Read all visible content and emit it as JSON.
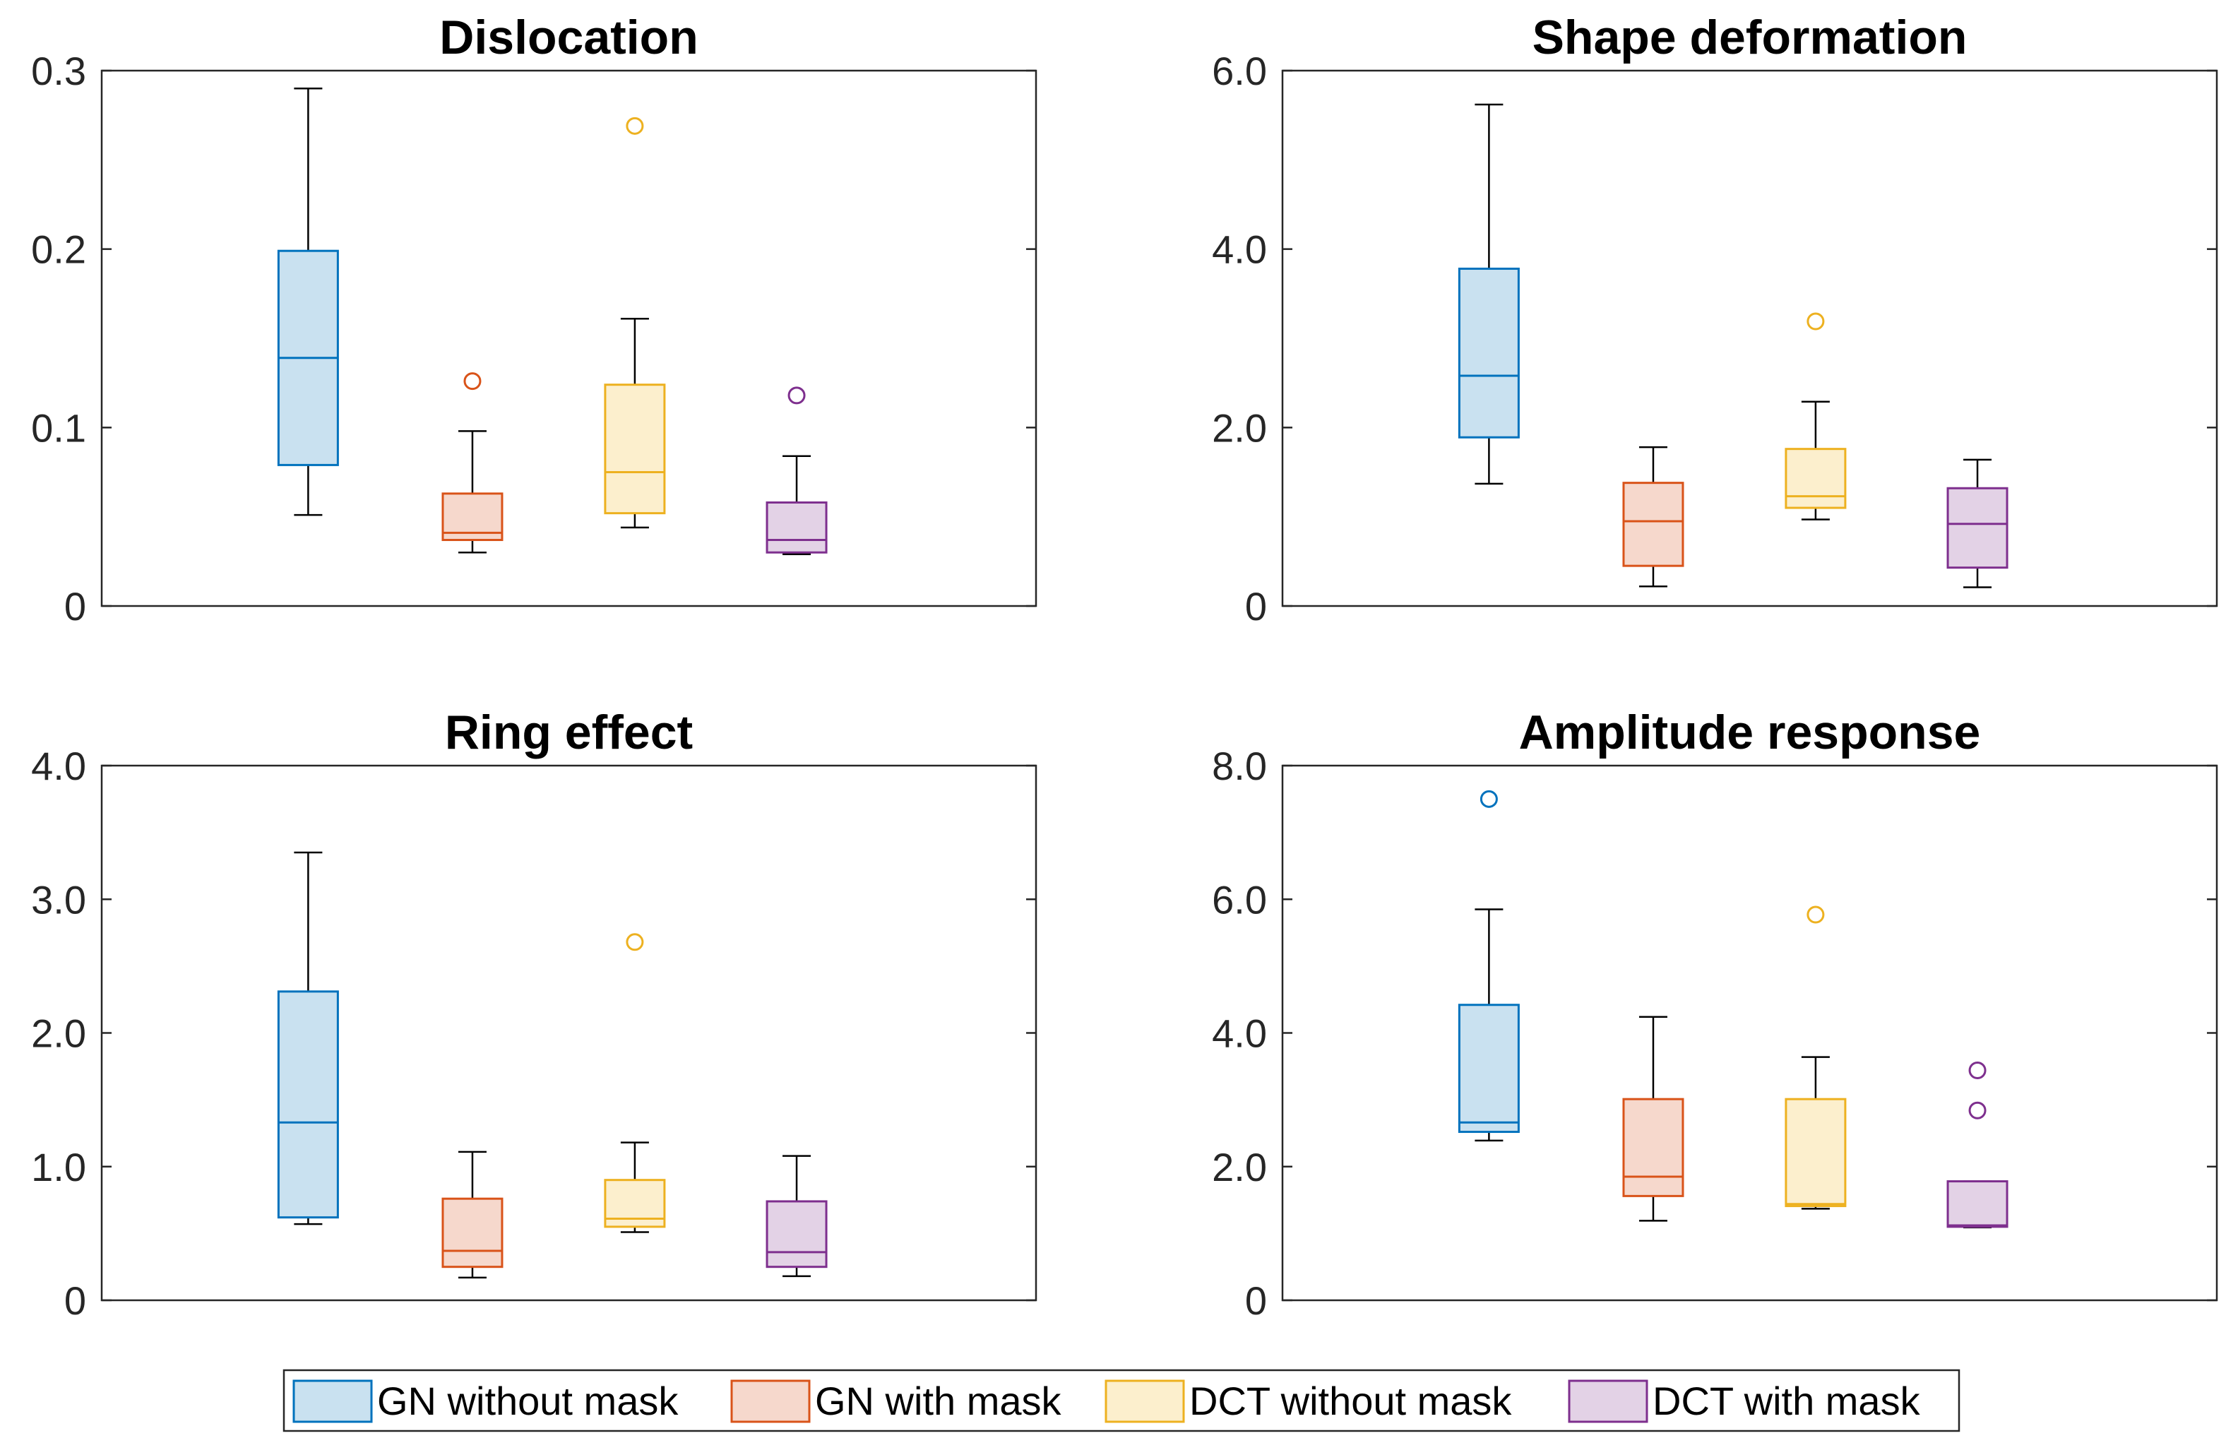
{
  "chart_data": [
    {
      "type": "box",
      "title": "Dislocation",
      "ylim": [
        0,
        0.3
      ],
      "yticks": [
        {
          "value": 0,
          "label": "0"
        },
        {
          "value": 0.1,
          "label": "0.1"
        },
        {
          "value": 0.2,
          "label": "0.2"
        },
        {
          "value": 0.3,
          "label": "0.3"
        }
      ],
      "series": [
        {
          "name": "GN without mask",
          "whisker_low": 0.051,
          "q1": 0.079,
          "median": 0.139,
          "q3": 0.199,
          "whisker_high": 0.29,
          "outliers": []
        },
        {
          "name": "GN with mask",
          "whisker_low": 0.03,
          "q1": 0.037,
          "median": 0.041,
          "q3": 0.063,
          "whisker_high": 0.098,
          "outliers": [
            0.126
          ]
        },
        {
          "name": "DCT without mask",
          "whisker_low": 0.044,
          "q1": 0.052,
          "median": 0.075,
          "q3": 0.124,
          "whisker_high": 0.161,
          "outliers": [
            0.269
          ]
        },
        {
          "name": "DCT with mask",
          "whisker_low": 0.029,
          "q1": 0.03,
          "median": 0.037,
          "q3": 0.058,
          "whisker_high": 0.084,
          "outliers": [
            0.118
          ]
        }
      ]
    },
    {
      "type": "box",
      "title": "Shape deformation",
      "ylim": [
        0,
        6
      ],
      "yticks": [
        {
          "value": 0,
          "label": "0"
        },
        {
          "value": 2,
          "label": "2.0"
        },
        {
          "value": 4,
          "label": "4.0"
        },
        {
          "value": 6,
          "label": "6.0"
        }
      ],
      "series": [
        {
          "name": "GN without mask",
          "whisker_low": 1.37,
          "q1": 1.89,
          "median": 2.58,
          "q3": 3.78,
          "whisker_high": 5.62,
          "outliers": []
        },
        {
          "name": "GN with mask",
          "whisker_low": 0.22,
          "q1": 0.45,
          "median": 0.95,
          "q3": 1.38,
          "whisker_high": 1.78,
          "outliers": []
        },
        {
          "name": "DCT without mask",
          "whisker_low": 0.97,
          "q1": 1.1,
          "median": 1.23,
          "q3": 1.76,
          "whisker_high": 2.29,
          "outliers": [
            3.19
          ]
        },
        {
          "name": "DCT with mask",
          "whisker_low": 0.21,
          "q1": 0.43,
          "median": 0.92,
          "q3": 1.32,
          "whisker_high": 1.64,
          "outliers": []
        }
      ]
    },
    {
      "type": "box",
      "title": "Ring effect",
      "ylim": [
        0,
        4
      ],
      "yticks": [
        {
          "value": 0,
          "label": "0"
        },
        {
          "value": 1,
          "label": "1.0"
        },
        {
          "value": 2,
          "label": "2.0"
        },
        {
          "value": 3,
          "label": "3.0"
        },
        {
          "value": 4,
          "label": "4.0"
        }
      ],
      "series": [
        {
          "name": "GN without mask",
          "whisker_low": 0.57,
          "q1": 0.62,
          "median": 1.33,
          "q3": 2.31,
          "whisker_high": 3.35,
          "outliers": []
        },
        {
          "name": "GN with mask",
          "whisker_low": 0.17,
          "q1": 0.25,
          "median": 0.37,
          "q3": 0.76,
          "whisker_high": 1.11,
          "outliers": []
        },
        {
          "name": "DCT without mask",
          "whisker_low": 0.51,
          "q1": 0.55,
          "median": 0.61,
          "q3": 0.9,
          "whisker_high": 1.18,
          "outliers": [
            2.68
          ]
        },
        {
          "name": "DCT with mask",
          "whisker_low": 0.18,
          "q1": 0.25,
          "median": 0.36,
          "q3": 0.74,
          "whisker_high": 1.08,
          "outliers": []
        }
      ]
    },
    {
      "type": "box",
      "title": "Amplitude response",
      "ylim": [
        0,
        8
      ],
      "yticks": [
        {
          "value": 0,
          "label": "0"
        },
        {
          "value": 2,
          "label": "2.0"
        },
        {
          "value": 4,
          "label": "4.0"
        },
        {
          "value": 6,
          "label": "6.0"
        },
        {
          "value": 8,
          "label": "8.0"
        }
      ],
      "series": [
        {
          "name": "GN without mask",
          "whisker_low": 2.39,
          "q1": 2.52,
          "median": 2.66,
          "q3": 4.42,
          "whisker_high": 5.85,
          "outliers": [
            7.5
          ]
        },
        {
          "name": "GN with mask",
          "whisker_low": 1.19,
          "q1": 1.56,
          "median": 1.85,
          "q3": 3.01,
          "whisker_high": 4.24,
          "outliers": []
        },
        {
          "name": "DCT without mask",
          "whisker_low": 1.37,
          "q1": 1.41,
          "median": 1.44,
          "q3": 3.01,
          "whisker_high": 3.64,
          "outliers": [
            5.77
          ]
        },
        {
          "name": "DCT with mask",
          "whisker_low": 1.09,
          "q1": 1.1,
          "median": 1.12,
          "q3": 1.78,
          "whisker_high": 1.78,
          "outliers": [
            2.84,
            3.44
          ]
        }
      ]
    }
  ],
  "legend": {
    "placement": "bottom-center",
    "items": [
      {
        "label": "GN without mask",
        "color": "#0072BD",
        "fill": "#C9E1F0"
      },
      {
        "label": "GN with mask",
        "color": "#D95319",
        "fill": "#F6D8CC"
      },
      {
        "label": "DCT without mask",
        "color": "#EDB120",
        "fill": "#FCEFCD"
      },
      {
        "label": "DCT with mask",
        "color": "#7E2F8E",
        "fill": "#E3D2E6"
      }
    ]
  }
}
